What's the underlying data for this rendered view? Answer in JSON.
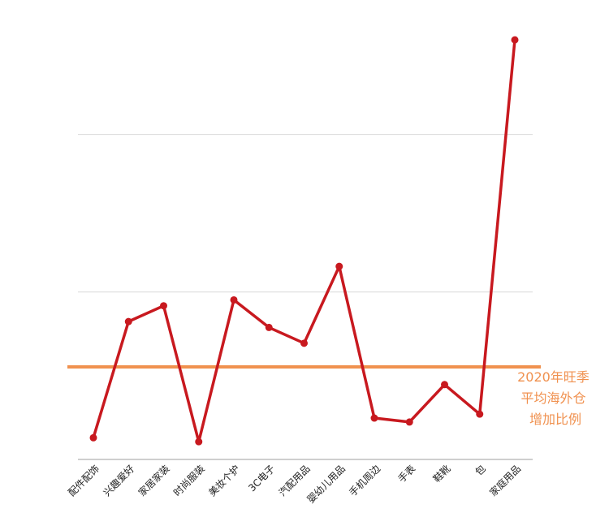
{
  "chart_data": {
    "type": "line",
    "categories": [
      "配件配饰",
      "兴趣爱好",
      "家居家装",
      "时尚服装",
      "美妆个护",
      "3C电子",
      "汽配用品",
      "婴幼儿用品",
      "手机周边",
      "手表",
      "鞋靴",
      "包",
      "家庭用品"
    ],
    "series": [
      {
        "values": [
          0.6,
          6.5,
          7.3,
          0.4,
          7.6,
          6.2,
          5.4,
          9.3,
          1.6,
          1.4,
          3.3,
          1.8,
          20.8
        ],
        "color": "#c8191f"
      }
    ],
    "reference_line": {
      "value": 4.2,
      "color": "#f0914f",
      "label_lines": [
        "2020年旺季",
        "平均海外仓",
        "增加比例"
      ]
    },
    "ylim": [
      -0.5,
      22
    ],
    "gridlines": [
      8,
      16
    ],
    "grid": true,
    "legend": "none"
  }
}
